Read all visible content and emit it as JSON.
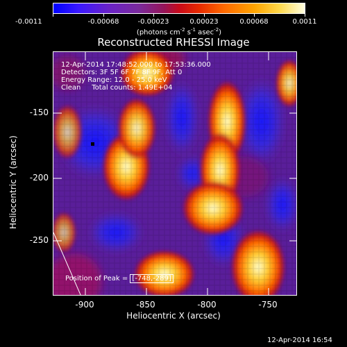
{
  "colorbar": {
    "tick_labels": [
      "-0.0011",
      "-0.00068",
      "-0.00023",
      "0.00023",
      "0.00068",
      "0.0011"
    ],
    "unit_label": {
      "main": "(photons cm",
      "exp1": "-2",
      "mid1": " s",
      "exp2": "-1",
      "mid2": " asec",
      "exp3": "-2",
      "end": ")"
    }
  },
  "title": "Reconstructed RHESSI Image",
  "info": {
    "line1": "12-Apr-2014 17:48:52.000 to 17:53:36.000",
    "line2": "Detectors: 3F 5F 6F 7F 8F 9F, Att 0",
    "line3": "Energy Range: 12.0 - 25.0 keV",
    "line4": "Clean     Total counts: 1.49E+04"
  },
  "axes": {
    "xlabel": "Heliocentric X (arcsec)",
    "ylabel": "Heliocentric Y (arcsec)",
    "xticks": [
      "-900",
      "-850",
      "-800",
      "-750"
    ],
    "yticks": [
      "-150",
      "-200",
      "-250"
    ]
  },
  "peak": {
    "label": "Position of Peak = ",
    "value": "[-748,-289]"
  },
  "timestamp": "12-Apr-2014 16:54"
}
